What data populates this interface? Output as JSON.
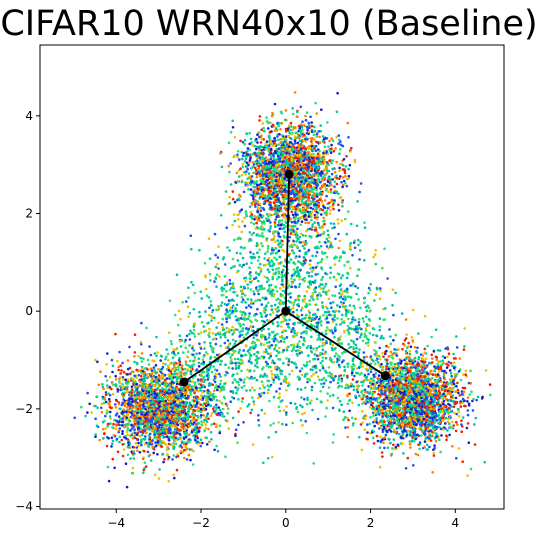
{
  "chart_data": {
    "type": "scatter",
    "title": "CIFAR10 WRN40x10 (Baseline)",
    "xlabel": "",
    "ylabel": "",
    "xlim": [
      -5.8,
      5.15
    ],
    "ylim": [
      -4.05,
      5.45
    ],
    "grid": false,
    "legend": "none",
    "x_ticks": [
      -4,
      -2,
      0,
      2,
      4
    ],
    "y_ticks": [
      -4,
      -2,
      0,
      2,
      4
    ],
    "x_tick_labels": [
      "−4",
      "−2",
      "0",
      "2",
      "4"
    ],
    "y_tick_labels": [
      "−4",
      "−2",
      "0",
      "2",
      "4"
    ],
    "clusters": [
      {
        "center": [
          0.1,
          2.8
        ],
        "spread": [
          0.55,
          0.5
        ]
      },
      {
        "center": [
          -3.0,
          -2.0
        ],
        "spread": [
          0.6,
          0.45
        ]
      },
      {
        "center": [
          3.0,
          -1.8
        ],
        "spread": [
          0.55,
          0.45
        ]
      }
    ],
    "point_colormap": [
      "#1020c8",
      "#2050f0",
      "#00c8a0",
      "#20e080",
      "#f0c000",
      "#ff8000",
      "#f02000"
    ],
    "skeleton": {
      "center": [
        0.0,
        0.0
      ],
      "endpoints": [
        [
          0.08,
          2.8
        ],
        [
          -2.4,
          -1.45
        ],
        [
          2.35,
          -1.32
        ]
      ],
      "color": "#000000"
    }
  }
}
